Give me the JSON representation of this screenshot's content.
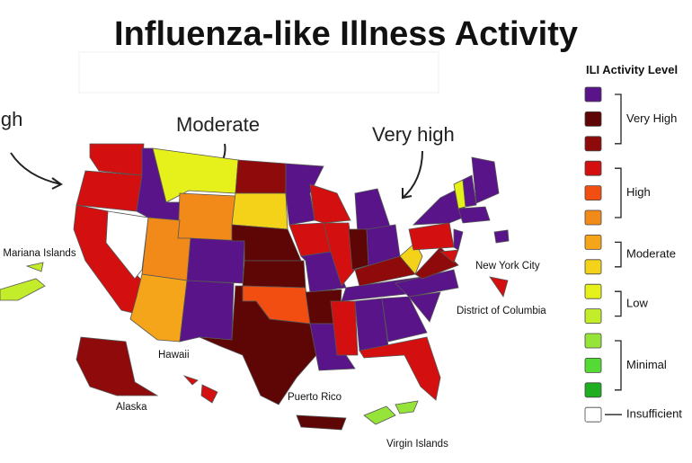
{
  "header": {
    "title": "Influenza-like Illness Activity"
  },
  "annotations": [
    "igh",
    "Moderate",
    "Very high"
  ],
  "map_labels": [
    ". Mariana Islands",
    "New York City",
    "District of Columbia",
    "Hawaii",
    "Alaska",
    "Puerto Rico",
    "Virgin Islands"
  ],
  "legend": {
    "title": "ILI Activity Level",
    "groups": [
      {
        "label": "Very High",
        "colors": [
          "#5a148a",
          "#5e0606",
          "#8f0a0a"
        ]
      },
      {
        "label": "High",
        "colors": [
          "#d40f0f",
          "#f24e12",
          "#f28a1a"
        ]
      },
      {
        "label": "Moderate",
        "colors": [
          "#f5a51a",
          "#f5d21a"
        ]
      },
      {
        "label": "Low",
        "colors": [
          "#e6f01a",
          "#c3ec2a"
        ]
      },
      {
        "label": "Minimal",
        "colors": [
          "#96e43a",
          "#55d935",
          "#1fae1f"
        ]
      },
      {
        "label": "Insufficient",
        "colors": [
          "#ffffff"
        ]
      }
    ]
  }
}
